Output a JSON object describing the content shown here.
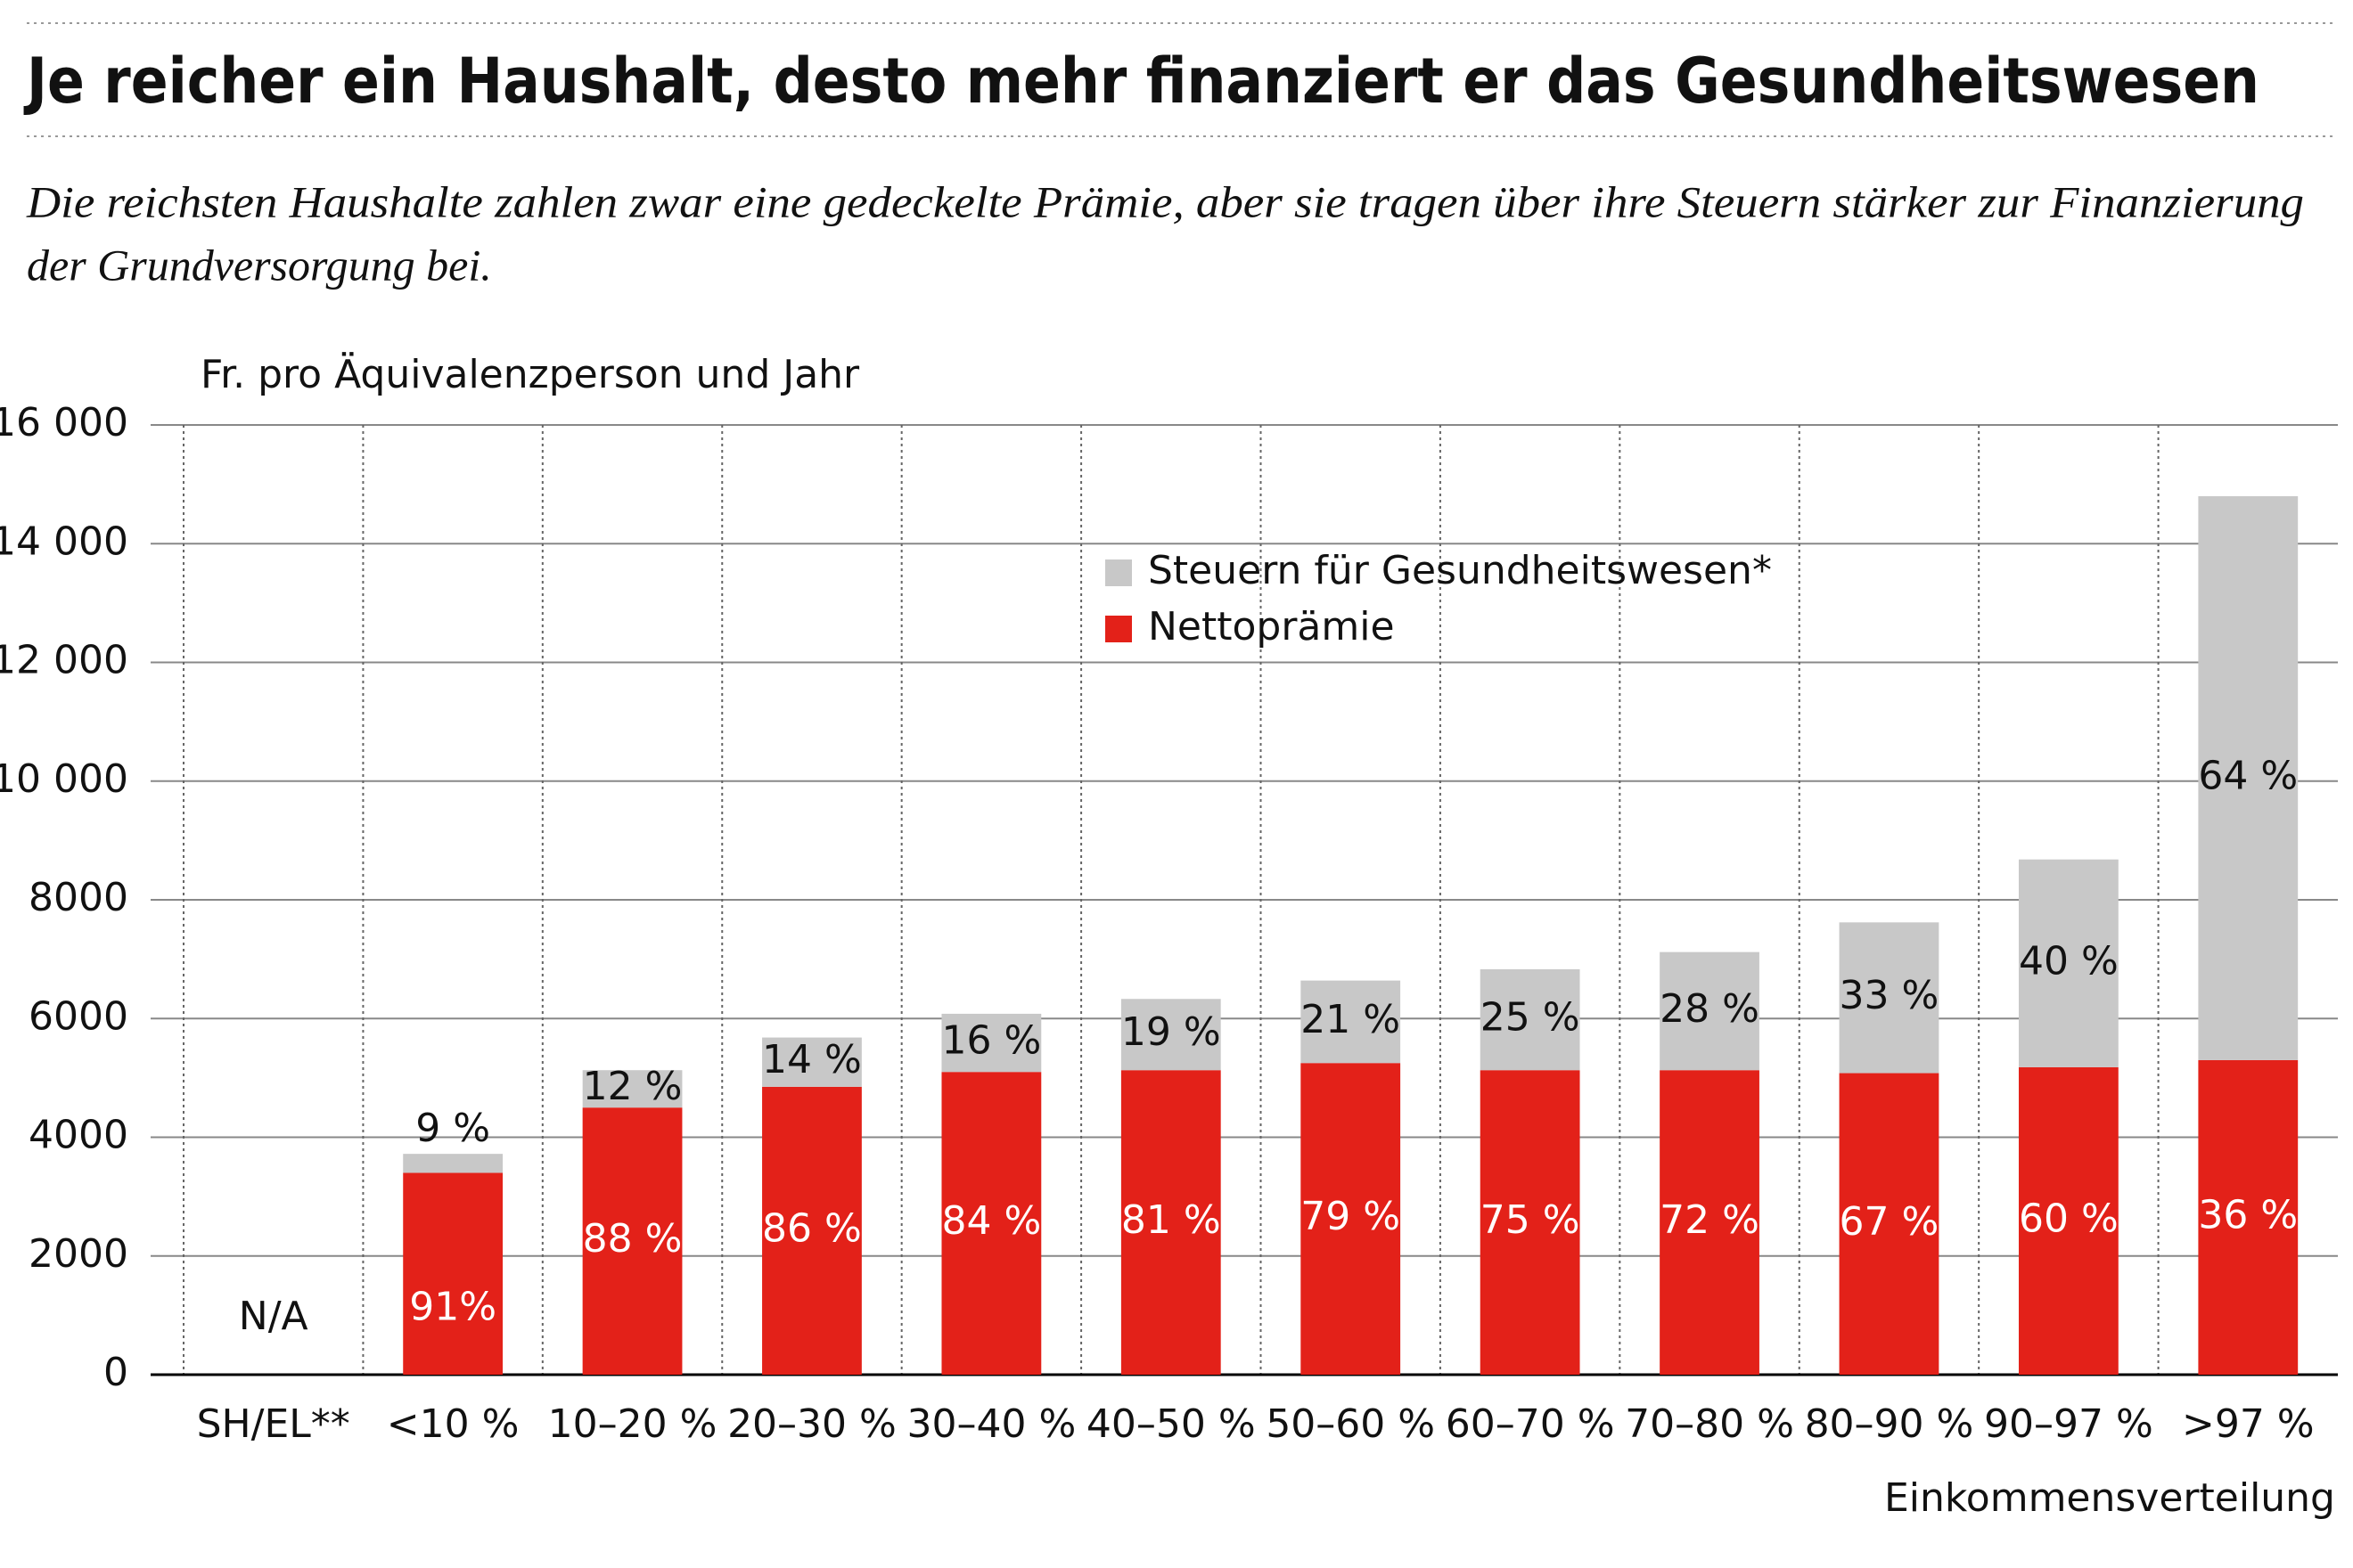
{
  "chart_data": {
    "type": "stacked_bar",
    "title": "Je reicher ein Haushalt, desto mehr finanziert er das Gesundheitswesen",
    "subtitle": [
      "Die reichsten Haushalte zahlen zwar eine gedeckelte Prämie, aber sie tragen über ihre Steuern stärker zur Finanzierung",
      "der Grundversorgung bei."
    ],
    "y_axis_label": "Fr. pro Äquivalenzperson und Jahr",
    "x_axis_label": "Einkommensverteilung",
    "categories": [
      "SH/EL**",
      "<10 %",
      "10–20 %",
      "20–30 %",
      "30–40 %",
      "40–50 %",
      "50–60 %",
      "60–70 %",
      "70–80 %",
      "80–90 %",
      "90–97 %",
      ">97 %"
    ],
    "na_label": "N/A",
    "series": [
      {
        "name": "Nettoprämie",
        "color": "#e32119",
        "values": [
          null,
          3400,
          4500,
          4850,
          5100,
          5130,
          5250,
          5130,
          5130,
          5080,
          5180,
          5300
        ],
        "percent_labels": [
          null,
          "91%",
          "88 %",
          "86 %",
          "84 %",
          "81 %",
          "79 %",
          "75 %",
          "72 %",
          "67 %",
          "60 %",
          "36 %"
        ]
      },
      {
        "name": "Steuern für Gesundheitswesen*",
        "color": "#c8c8c8",
        "values": [
          null,
          320,
          630,
          830,
          980,
          1200,
          1390,
          1700,
          1990,
          2540,
          3500,
          9500
        ],
        "percent_labels": [
          null,
          "9 %",
          "12 %",
          "14 %",
          "16 %",
          "19 %",
          "21 %",
          "25 %",
          "28 %",
          "33 %",
          "40 %",
          "64 %"
        ]
      }
    ],
    "ylim": [
      0,
      16000
    ],
    "yticks": [
      0,
      2000,
      4000,
      6000,
      8000,
      {
        "value": 10000,
        "label": "10 000"
      },
      {
        "value": 12000,
        "label": "12 000"
      },
      {
        "value": 14000,
        "label": "14 000"
      },
      {
        "value": 16000,
        "label": "16 000"
      }
    ],
    "grid": true
  }
}
